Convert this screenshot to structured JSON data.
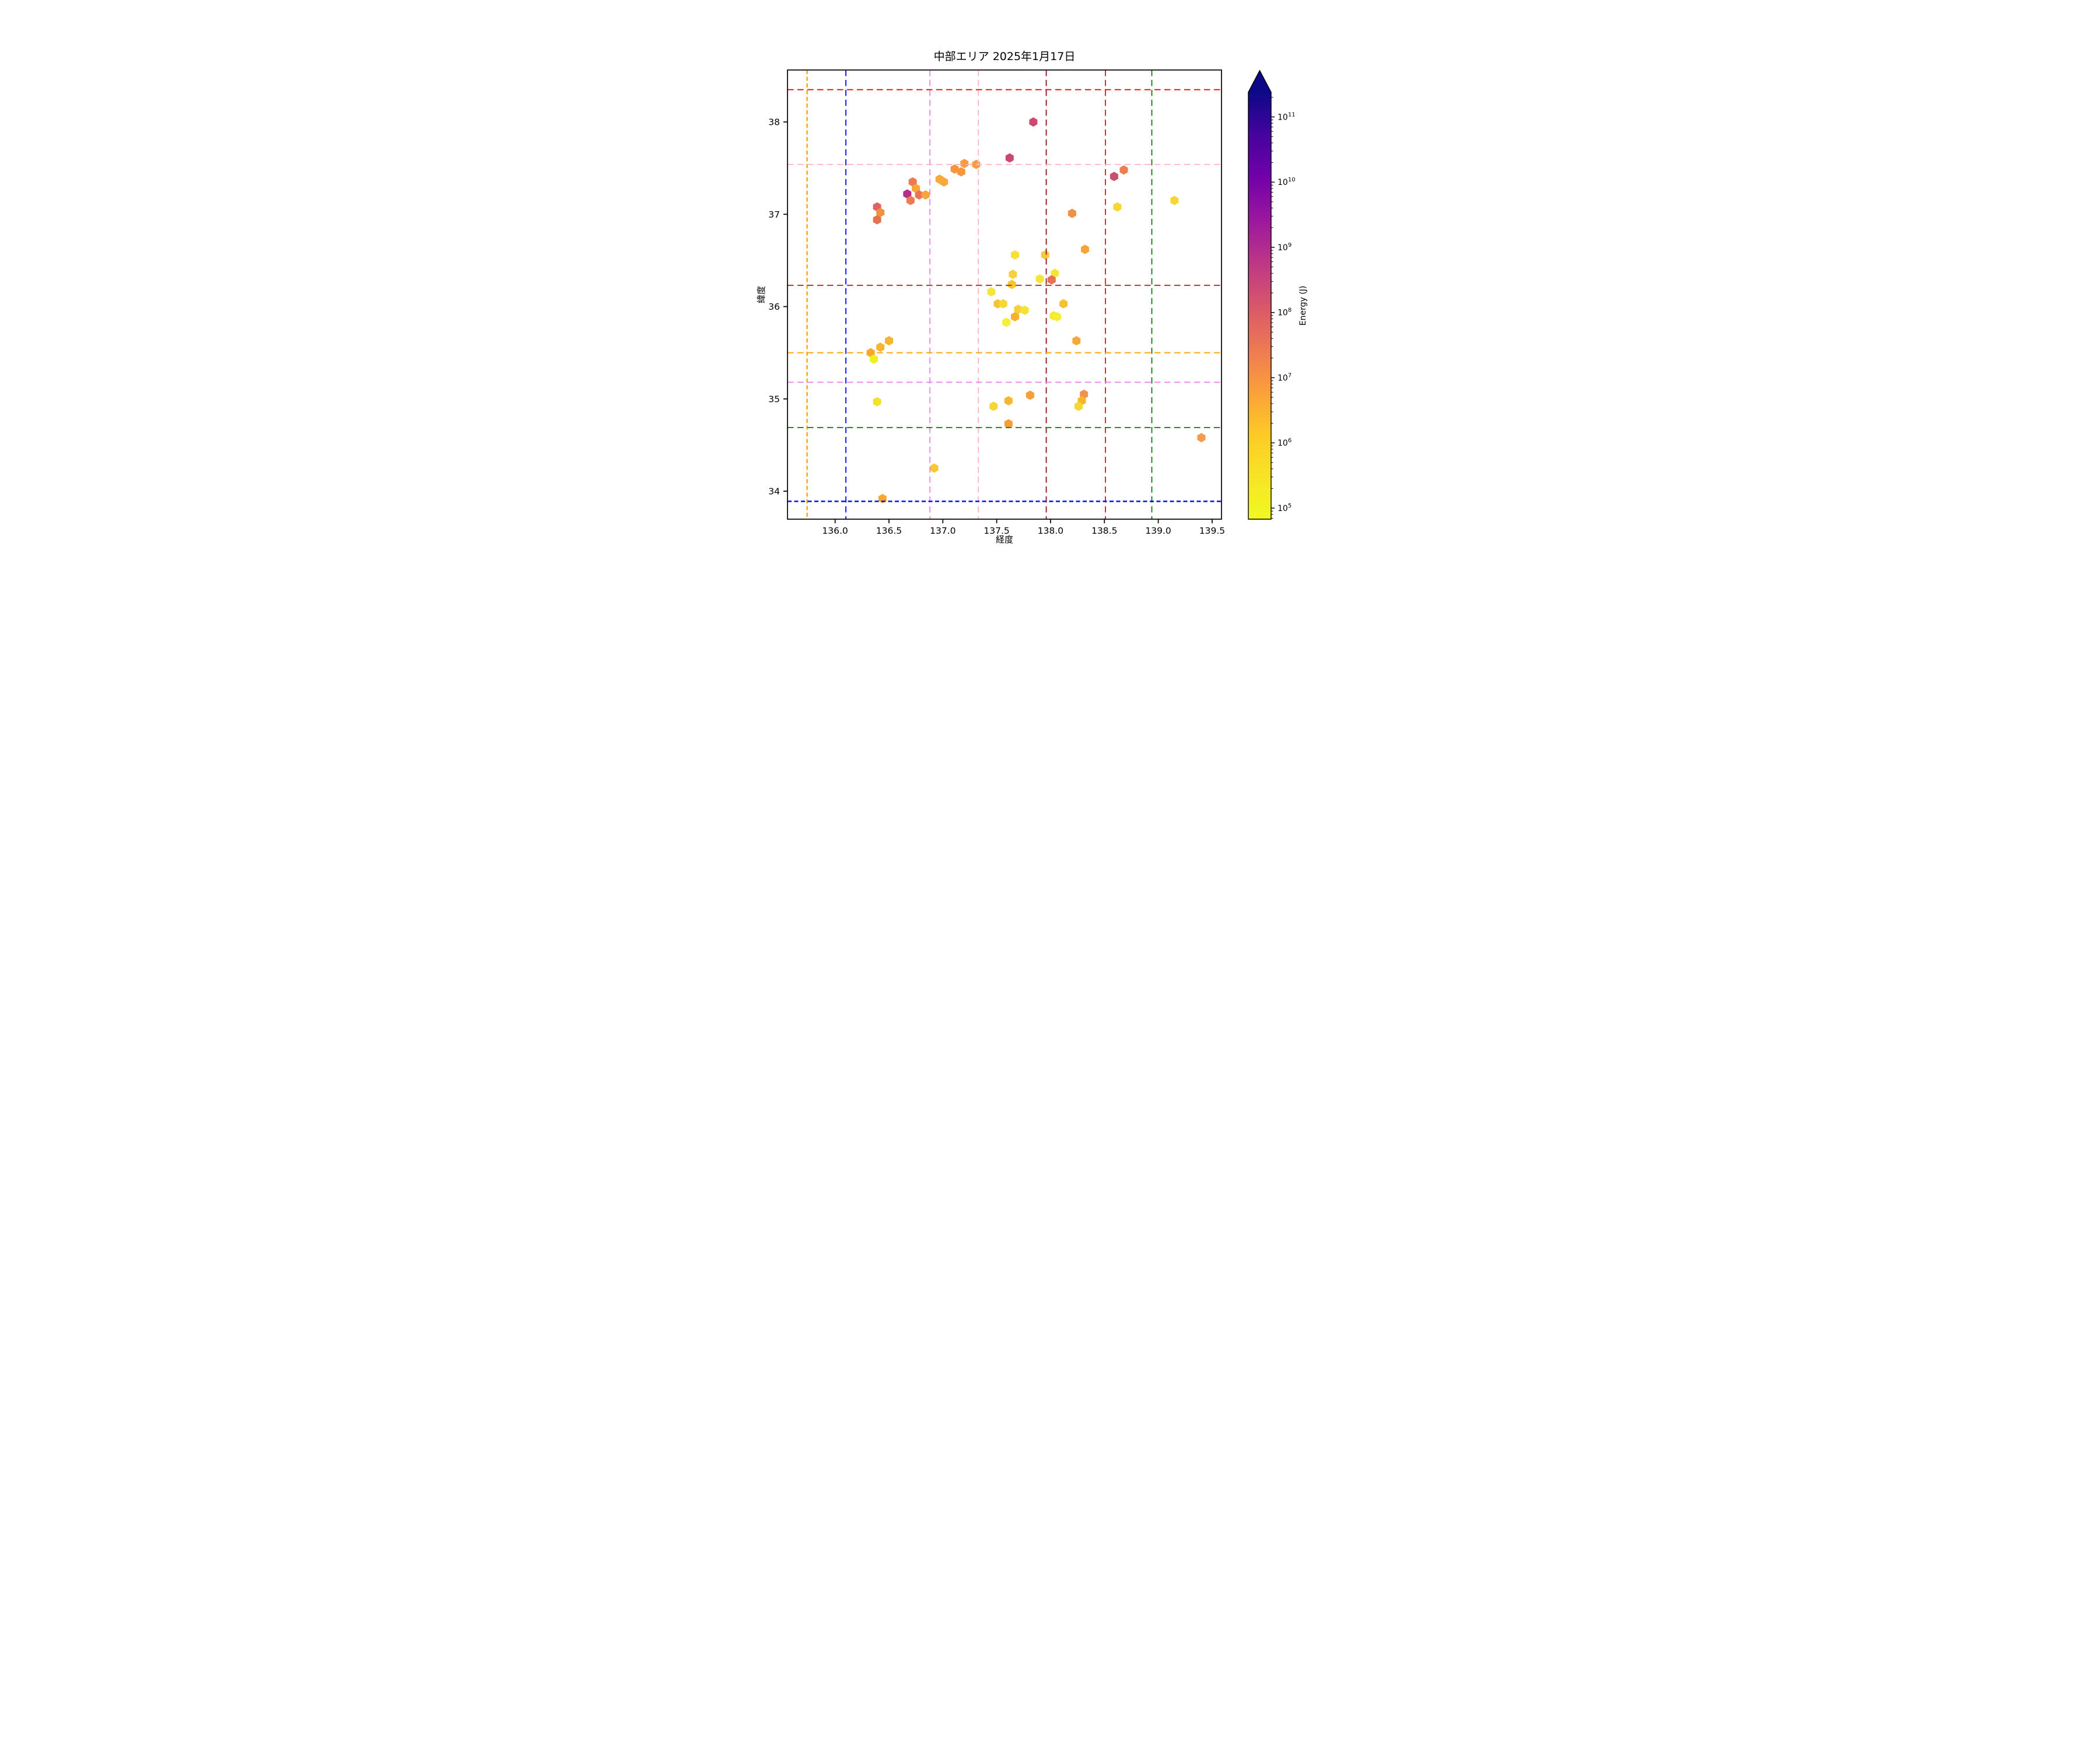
{
  "title": "中部エリア 2025年1月17日",
  "chart_data": {
    "type": "scatter",
    "marker": "hexagon",
    "title": "中部エリア 2025年1月17日",
    "xlabel": "経度",
    "ylabel": "緯度",
    "xlim": [
      135.558,
      139.587
    ],
    "ylim": [
      33.697,
      38.563
    ],
    "grid": "colored dashed reference lines",
    "legend_position": "none",
    "xticks": [
      136.0,
      136.5,
      137.0,
      137.5,
      138.0,
      138.5,
      139.0,
      139.5
    ],
    "xtick_labels": [
      "136.0",
      "136.5",
      "137.0",
      "137.5",
      "138.0",
      "138.5",
      "139.0",
      "139.5"
    ],
    "yticks": [
      34,
      35,
      36,
      37,
      38
    ],
    "ytick_labels": [
      "34",
      "35",
      "36",
      "37",
      "38"
    ],
    "gridlines_vertical": [
      {
        "x": 135.74,
        "color": "#ffa500",
        "style": "dense-dash"
      },
      {
        "x": 136.1,
        "color": "#0000ff",
        "style": "dash"
      },
      {
        "x": 136.88,
        "color": "#ee82ee",
        "style": "dash"
      },
      {
        "x": 137.33,
        "color": "#ffb6c1",
        "style": "dash"
      },
      {
        "x": 137.96,
        "color": "#8e1414",
        "style": "dash"
      },
      {
        "x": 138.51,
        "color": "#ff0000",
        "style": "dash"
      },
      {
        "x": 138.94,
        "color": "#008000",
        "style": "dash"
      }
    ],
    "gridlines_horizontal": [
      {
        "y": 38.35,
        "color": "#ff0000",
        "style": "dash"
      },
      {
        "y": 37.54,
        "color": "#ffb6c1",
        "style": "dash"
      },
      {
        "y": 36.23,
        "color": "#a52a2a",
        "style": "dash"
      },
      {
        "y": 35.5,
        "color": "#ffa500",
        "style": "dash"
      },
      {
        "y": 35.18,
        "color": "#ee82ee",
        "style": "dash"
      },
      {
        "y": 34.69,
        "color": "#008000",
        "style": "dash"
      },
      {
        "y": 33.89,
        "color": "#0000ff",
        "style": "dense-dash"
      }
    ],
    "points": [
      {
        "lon": 136.39,
        "lat": 37.08,
        "color": "#dd6365"
      },
      {
        "lon": 136.42,
        "lat": 37.02,
        "color": "#f0933f"
      },
      {
        "lon": 136.39,
        "lat": 36.94,
        "color": "#e7714f"
      },
      {
        "lon": 136.72,
        "lat": 37.35,
        "color": "#ed7b52"
      },
      {
        "lon": 136.75,
        "lat": 37.28,
        "color": "#f9a53c"
      },
      {
        "lon": 136.67,
        "lat": 37.22,
        "color": "#b62d8c"
      },
      {
        "lon": 136.78,
        "lat": 37.21,
        "color": "#ed7251"
      },
      {
        "lon": 136.84,
        "lat": 37.21,
        "color": "#f9a53c"
      },
      {
        "lon": 136.7,
        "lat": 37.15,
        "color": "#ed7b52"
      },
      {
        "lon": 136.97,
        "lat": 37.38,
        "color": "#f8a93a"
      },
      {
        "lon": 137.01,
        "lat": 37.35,
        "color": "#f8a93a"
      },
      {
        "lon": 137.11,
        "lat": 37.49,
        "color": "#f5953d"
      },
      {
        "lon": 137.17,
        "lat": 37.46,
        "color": "#f5953d"
      },
      {
        "lon": 137.2,
        "lat": 37.55,
        "color": "#f89c3e"
      },
      {
        "lon": 137.31,
        "lat": 37.54,
        "color": "#f89c3e"
      },
      {
        "lon": 137.62,
        "lat": 37.61,
        "color": "#c64a72"
      },
      {
        "lon": 137.84,
        "lat": 38.0,
        "color": "#cc4a6e"
      },
      {
        "lon": 138.59,
        "lat": 37.41,
        "color": "#cb506b"
      },
      {
        "lon": 138.68,
        "lat": 37.48,
        "color": "#ec7e51"
      },
      {
        "lon": 138.62,
        "lat": 37.08,
        "color": "#f5d730"
      },
      {
        "lon": 139.15,
        "lat": 37.15,
        "color": "#f5d730"
      },
      {
        "lon": 138.2,
        "lat": 37.01,
        "color": "#ef9140"
      },
      {
        "lon": 138.32,
        "lat": 36.62,
        "color": "#f9a238"
      },
      {
        "lon": 137.67,
        "lat": 36.56,
        "color": "#f8df3a"
      },
      {
        "lon": 137.95,
        "lat": 36.56,
        "color": "#f6c940"
      },
      {
        "lon": 137.65,
        "lat": 36.35,
        "color": "#f6d23a"
      },
      {
        "lon": 138.04,
        "lat": 36.36,
        "color": "#f5e53b"
      },
      {
        "lon": 137.9,
        "lat": 36.3,
        "color": "#f4e637"
      },
      {
        "lon": 138.01,
        "lat": 36.29,
        "color": "#e57252"
      },
      {
        "lon": 137.64,
        "lat": 36.24,
        "color": "#f6c62e"
      },
      {
        "lon": 137.45,
        "lat": 36.16,
        "color": "#f5e63a"
      },
      {
        "lon": 137.51,
        "lat": 36.03,
        "color": "#f6c333"
      },
      {
        "lon": 137.56,
        "lat": 36.03,
        "color": "#f7d63a"
      },
      {
        "lon": 138.12,
        "lat": 36.03,
        "color": "#f7c030"
      },
      {
        "lon": 137.7,
        "lat": 35.97,
        "color": "#f6d03a"
      },
      {
        "lon": 137.76,
        "lat": 35.96,
        "color": "#f6e135"
      },
      {
        "lon": 137.67,
        "lat": 35.89,
        "color": "#f8b02e"
      },
      {
        "lon": 137.59,
        "lat": 35.83,
        "color": "#f6ef38"
      },
      {
        "lon": 138.03,
        "lat": 35.9,
        "color": "#f4ea33"
      },
      {
        "lon": 138.06,
        "lat": 35.89,
        "color": "#f2ee35"
      },
      {
        "lon": 138.24,
        "lat": 35.63,
        "color": "#f8a838"
      },
      {
        "lon": 136.33,
        "lat": 35.5,
        "color": "#f9a830"
      },
      {
        "lon": 136.42,
        "lat": 35.56,
        "color": "#f9b52b"
      },
      {
        "lon": 136.5,
        "lat": 35.63,
        "color": "#f9b52b"
      },
      {
        "lon": 136.36,
        "lat": 35.43,
        "color": "#eff024"
      },
      {
        "lon": 136.39,
        "lat": 34.97,
        "color": "#f5e02c"
      },
      {
        "lon": 137.47,
        "lat": 34.92,
        "color": "#f5d732"
      },
      {
        "lon": 137.61,
        "lat": 34.98,
        "color": "#f8b62c"
      },
      {
        "lon": 137.81,
        "lat": 35.04,
        "color": "#f89e37"
      },
      {
        "lon": 137.61,
        "lat": 34.73,
        "color": "#f89e37"
      },
      {
        "lon": 138.31,
        "lat": 35.05,
        "color": "#f0934c"
      },
      {
        "lon": 138.29,
        "lat": 34.98,
        "color": "#f8b62c"
      },
      {
        "lon": 138.26,
        "lat": 34.92,
        "color": "#f5d732"
      },
      {
        "lon": 139.4,
        "lat": 34.58,
        "color": "#f39c4e"
      },
      {
        "lon": 136.92,
        "lat": 34.25,
        "color": "#f7c831"
      },
      {
        "lon": 136.44,
        "lat": 33.92,
        "color": "#f9a929"
      }
    ],
    "colorbar": {
      "label": "Energy (J)",
      "scale": "log",
      "tick_exponents": [
        5,
        6,
        7,
        8,
        9,
        10,
        11
      ],
      "log_min": 4.83,
      "log_max": 11.38,
      "extend": "max",
      "extend_color": "#0d0887",
      "gradient_top_to_bottom": [
        "#0d0887",
        "#46039f",
        "#7201a8",
        "#9c179e",
        "#bd3786",
        "#d8576b",
        "#ed7953",
        "#fb9f3a",
        "#fdca26",
        "#f7e425",
        "#f0f921"
      ]
    }
  }
}
